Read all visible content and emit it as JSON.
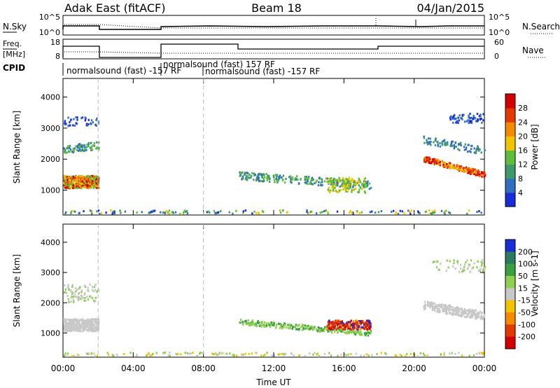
{
  "header": {
    "station": "Adak East (fitACF)",
    "beam": "Beam 18",
    "date": "04/Jan/2015"
  },
  "noise_panel": {
    "left_label": "N.Sky",
    "right_label": "N.Search",
    "left_ticks": [
      "10^5",
      "10^0"
    ],
    "right_ticks": [
      "10^5",
      "10^0"
    ]
  },
  "freq_panel": {
    "left_label_1": "Freq.",
    "left_label_2": "[MHz]",
    "right_label": "Nave",
    "left_ticks": [
      "18",
      "8"
    ],
    "right_ticks": [
      "60",
      "0"
    ]
  },
  "cpid": {
    "label": "CPID",
    "segments": [
      "normalsound (fast) -157 RF",
      "normalsound (fast) 157 RF",
      "normalsound (fast) -157 RF"
    ]
  },
  "chart_data": [
    {
      "type": "heatmap",
      "title": "",
      "xlabel": "Time UT",
      "ylabel": "Slant Range [km]",
      "x_ticks": [
        "00:00",
        "04:00",
        "08:00",
        "12:00",
        "16:00",
        "20:00",
        "00:00"
      ],
      "y_ticks": [
        "1000",
        "2000",
        "3000",
        "4000"
      ],
      "ylim": [
        200,
        4600
      ],
      "colorbar_label": "Power [dB]",
      "colorbar_ticks": [
        "4",
        "8",
        "12",
        "16",
        "20",
        "24",
        "28"
      ],
      "colorbar_colors": [
        "#1a2bd8",
        "#2f6ec0",
        "#3e9a6a",
        "#5fbf3a",
        "#f2c400",
        "#f58a00",
        "#e23a00",
        "#d40000"
      ]
    },
    {
      "type": "heatmap",
      "title": "",
      "xlabel": "Time UT",
      "ylabel": "Slant Range [km]",
      "x_ticks": [
        "00:00",
        "04:00",
        "08:00",
        "12:00",
        "16:00",
        "20:00",
        "00:00"
      ],
      "y_ticks": [
        "1000",
        "2000",
        "3000",
        "4000"
      ],
      "ylim": [
        200,
        4600
      ],
      "colorbar_label": "Velocity [m s-1]",
      "colorbar_ticks": [
        "200",
        "100",
        "50",
        "15",
        "-15",
        "-50",
        "-100",
        "-200"
      ],
      "colorbar_colors": [
        "#1a2bd8",
        "#2a7a60",
        "#3aa040",
        "#8fd050",
        "#c8c8c8",
        "#f2c400",
        "#f58a00",
        "#e23a00",
        "#d40000"
      ]
    }
  ]
}
